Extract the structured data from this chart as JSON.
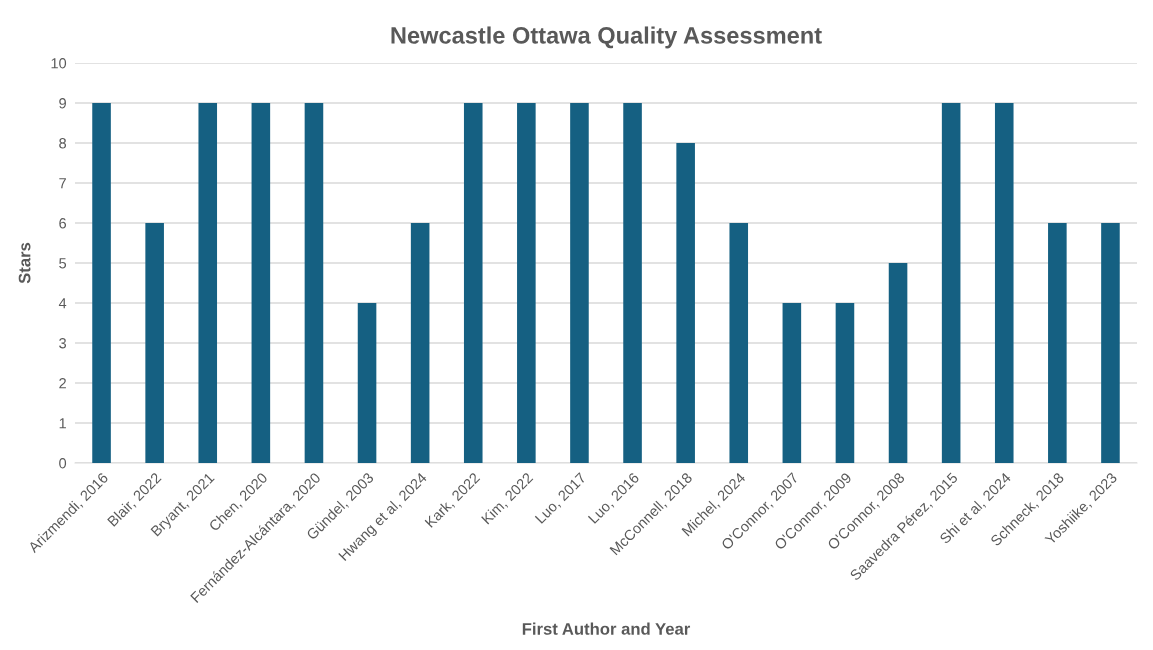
{
  "chart_data": {
    "type": "bar",
    "title": "Newcastle Ottawa Quality Assessment",
    "xlabel": "First Author and Year",
    "ylabel": "Stars",
    "categories": [
      "Arizmendi, 2016",
      "Blair, 2022",
      "Bryant, 2021",
      "Chen, 2020",
      "Fernández-Alcántara, 2020",
      "Gündel, 2003",
      "Hwang et al, 2024",
      "Kark, 2022",
      "Kim, 2022",
      "Luo, 2017",
      "Luo, 2016",
      "McConnell, 2018",
      "Michel, 2024",
      "O'Connor, 2007",
      "O'Connor, 2009",
      "O'Connor, 2008",
      "Saavedra Pérez, 2015",
      "Shi et al, 2024",
      "Schneck, 2018",
      "Yoshiike, 2023"
    ],
    "values": [
      9,
      6,
      9,
      9,
      9,
      4,
      6,
      9,
      9,
      9,
      9,
      8,
      6,
      4,
      4,
      5,
      9,
      9,
      6,
      6
    ],
    "color": "#156082",
    "ylim": [
      0,
      10
    ],
    "yticks": [
      0,
      1,
      2,
      3,
      4,
      5,
      6,
      7,
      8,
      9,
      10
    ],
    "grid": "y"
  }
}
